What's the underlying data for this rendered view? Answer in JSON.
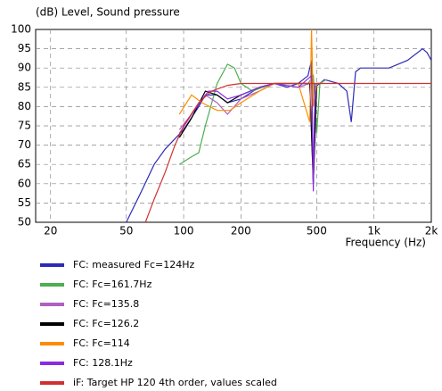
{
  "chart_data": {
    "type": "line",
    "title": "(dB)  Level, Sound pressure",
    "x_label": "Frequency  (Hz)",
    "log_x": true,
    "grid": true,
    "xlim": [
      16.7,
      2000
    ],
    "ylim": [
      50,
      100
    ],
    "xticks": [
      20,
      50,
      100,
      200,
      500,
      {
        "value": 1000,
        "label": "1k"
      },
      {
        "value": 2000,
        "label": "2k"
      }
    ],
    "yticks": [
      50,
      55,
      60,
      65,
      70,
      75,
      80,
      85,
      90,
      95,
      100
    ],
    "series": [
      {
        "name": "FC: measured Fc=124Hz",
        "color": "#2b2bb8",
        "x": [
          50,
          60,
          70,
          80,
          100,
          120,
          130,
          150,
          170,
          200,
          250,
          300,
          350,
          400,
          450,
          470,
          480,
          490,
          550,
          650,
          720,
          760,
          800,
          850,
          1000,
          1200,
          1500,
          1800,
          1900,
          2000
        ],
        "values": [
          50,
          58,
          65,
          69,
          74,
          80,
          83,
          83,
          81,
          82,
          85,
          86,
          85,
          86,
          88,
          92,
          60,
          85,
          87,
          86,
          84,
          76,
          89,
          90,
          90,
          90,
          92,
          95,
          94,
          92
        ]
      },
      {
        "name": "FC: Fc=161.7Hz",
        "color": "#4caf50",
        "x": [
          95,
          110,
          120,
          130,
          150,
          170,
          185,
          200,
          230,
          260,
          300,
          400,
          450,
          480,
          500,
          520,
          560
        ],
        "values": [
          65,
          67,
          68,
          75,
          86,
          91,
          90,
          86,
          84,
          85,
          86,
          86,
          86,
          88,
          73,
          86,
          87
        ]
      },
      {
        "name": "FC: Fc=135.8",
        "color": "#b060c0",
        "x": [
          95,
          110,
          130,
          150,
          170,
          200,
          250,
          300,
          400,
          460,
          480,
          500,
          550
        ],
        "values": [
          74,
          78,
          83,
          81,
          78,
          82,
          84,
          86,
          85,
          86,
          60,
          86,
          86
        ]
      },
      {
        "name": "FC: Fc=126.2",
        "color": "#000000",
        "x": [
          95,
          110,
          130,
          150,
          170,
          200,
          250,
          300,
          400,
          460,
          480,
          500
        ],
        "values": [
          72,
          77,
          84,
          83,
          81,
          83,
          85,
          86,
          86,
          86,
          60,
          86
        ]
      },
      {
        "name": "FC: Fc=114",
        "color": "#ff8c00",
        "x": [
          95,
          110,
          125,
          150,
          175,
          200,
          250,
          300,
          400,
          460,
          470,
          480,
          500
        ],
        "values": [
          78,
          83,
          81,
          79,
          79,
          81,
          84,
          86,
          86,
          76,
          100,
          80,
          86
        ]
      },
      {
        "name": "FC: 128.1Hz",
        "color": "#8a2be2",
        "x": [
          95,
          110,
          135,
          150,
          170,
          200,
          250,
          300,
          400,
          470,
          480,
          490,
          520
        ],
        "values": [
          73,
          78,
          84,
          84,
          82,
          83,
          85,
          86,
          85,
          88,
          58,
          86,
          86
        ]
      },
      {
        "name": "iF: Target HP 120 4th order, values scaled",
        "color": "#d03030",
        "x": [
          63,
          70,
          80,
          90,
          100,
          120,
          140,
          170,
          200,
          300,
          500,
          1000,
          2000
        ],
        "values": [
          50,
          56,
          63,
          70,
          75,
          81,
          84,
          85.5,
          86,
          86,
          86,
          86,
          86
        ]
      }
    ]
  }
}
